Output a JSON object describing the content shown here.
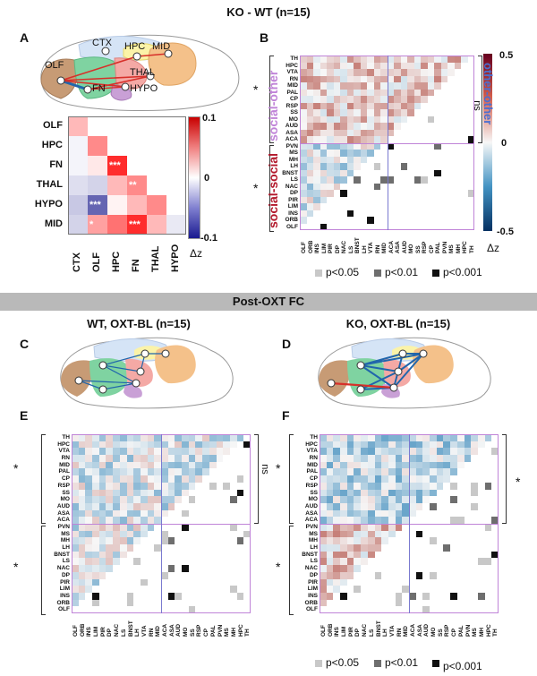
{
  "top_title": "KO - WT (n=15)",
  "post_bar": "Post-OXT FC",
  "panel_letters": {
    "A": "A",
    "B": "B",
    "C": "C",
    "D": "D",
    "E": "E",
    "F": "F"
  },
  "brain_regions": [
    "CTX",
    "HPC",
    "MID",
    "OLF",
    "THAL",
    "FN",
    "HYPO"
  ],
  "panel_a": {
    "rows": [
      "OLF",
      "HPC",
      "FN",
      "THAL",
      "HYPO",
      "MID"
    ],
    "cols": [
      "CTX",
      "OLF",
      "HPC",
      "FN",
      "THAL",
      "HYPO"
    ],
    "values": [
      [
        0.03
      ],
      [
        -0.005,
        0.05
      ],
      [
        -0.005,
        0.01,
        0.09
      ],
      [
        -0.015,
        -0.02,
        0.03,
        0.05
      ],
      [
        -0.025,
        -0.07,
        0.005,
        0.03,
        0.05
      ],
      [
        -0.02,
        0.04,
        0.06,
        0.09,
        0.03,
        -0.01
      ]
    ],
    "stars": [
      [
        "",
        ""
      ],
      [
        "",
        ""
      ],
      [
        "",
        "",
        "***"
      ],
      [
        "",
        "",
        "",
        "**"
      ],
      [
        "",
        "***"
      ],
      [
        "",
        "*",
        "",
        "***"
      ]
    ],
    "colorbar_max": "0.1",
    "colorbar_mid": "0",
    "colorbar_min": "-0.1",
    "colorbar_label": "Δz"
  },
  "panel_b": {
    "group_social_other": "social-other",
    "group_other_other": "other-other",
    "group_social_social": "social-social",
    "sig_star": "*",
    "ns": "ns",
    "colorbar_max": "0.5",
    "colorbar_mid": "0",
    "colorbar_min": "-0.5",
    "colorbar_label": "Δz"
  },
  "matrix_rows": [
    "TH",
    "HPC",
    "VTA",
    "RN",
    "MID",
    "PAL",
    "CP",
    "RSP",
    "SS",
    "MO",
    "AUD",
    "ASA",
    "ACA",
    "PVN",
    "MS",
    "MH",
    "LH",
    "BNST",
    "LS",
    "NAC",
    "DP",
    "PIR",
    "LIM",
    "INS",
    "ORB",
    "OLF"
  ],
  "matrix_cols": [
    "OLF",
    "ORB",
    "INS",
    "LIM",
    "PIR",
    "DP",
    "NAC",
    "LS",
    "BNST",
    "LH",
    "VTA",
    "RN",
    "MID",
    "ACA",
    "ASA",
    "AUD",
    "MO",
    "SS",
    "RSP",
    "CP",
    "PAL",
    "PVN",
    "MS",
    "MH",
    "HPC",
    "TH"
  ],
  "legend": {
    "p05": "p<0.05",
    "p01": "p<0.01",
    "p001": "p<0.001"
  },
  "panel_c_title": "WT, OXT-BL (n=15)",
  "panel_d_title": "KO, OXT-BL (n=15)",
  "panel_e": {
    "sig_top": "*",
    "ns": "ns",
    "sig_bottom": "*"
  },
  "panel_f": {
    "sig_top": "*",
    "sig_right": "*",
    "sig_bottom": "*"
  },
  "colors": {
    "pos": "#b2182b",
    "neg": "#2166ac",
    "purple": "#c084d8",
    "bar": "#b9b9b9"
  }
}
